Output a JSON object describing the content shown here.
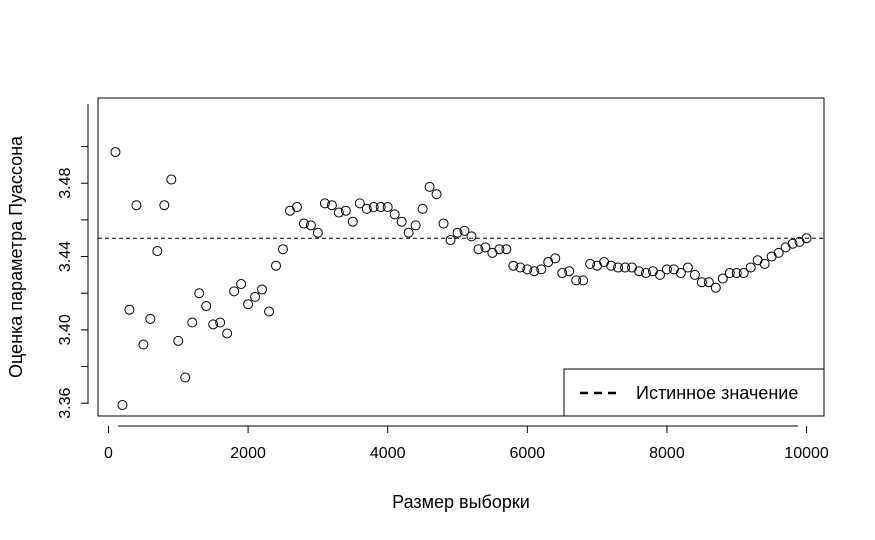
{
  "chart_data": {
    "type": "scatter",
    "xlabel": "Размер выборки",
    "ylabel": "Оценка параметра Пуассона",
    "xlim": [
      -150,
      10250
    ],
    "ylim": [
      3.353,
      3.5265
    ],
    "x_ticks": [
      0,
      2000,
      4000,
      6000,
      8000,
      10000
    ],
    "x_tick_labels": [
      "0",
      "2000",
      "4000",
      "6000",
      "8000",
      "10000"
    ],
    "y_ticks": [
      3.36,
      3.4,
      3.44,
      3.48
    ],
    "y_tick_labels": [
      "3.36",
      "3.40",
      "3.44",
      "3.48"
    ],
    "y_minor_ticks": [
      3.38,
      3.42,
      3.46,
      3.5
    ],
    "reference_line": {
      "y": 3.45,
      "style": "dashed",
      "label": "Истинное значение"
    },
    "legend": {
      "position": "bottom-right",
      "entries": [
        "Истинное значение"
      ]
    },
    "grid": false,
    "x": [
      100,
      200,
      300,
      400,
      500,
      600,
      700,
      800,
      900,
      1000,
      1100,
      1200,
      1300,
      1400,
      1500,
      1600,
      1700,
      1800,
      1900,
      2000,
      2100,
      2200,
      2300,
      2400,
      2500,
      2600,
      2700,
      2800,
      2900,
      3000,
      3100,
      3200,
      3300,
      3400,
      3500,
      3600,
      3700,
      3800,
      3900,
      4000,
      4100,
      4200,
      4300,
      4400,
      4500,
      4600,
      4700,
      4800,
      4900,
      5000,
      5100,
      5200,
      5300,
      5400,
      5500,
      5600,
      5700,
      5800,
      5900,
      6000,
      6100,
      6200,
      6300,
      6400,
      6500,
      6600,
      6700,
      6800,
      6900,
      7000,
      7100,
      7200,
      7300,
      7400,
      7500,
      7600,
      7700,
      7800,
      7900,
      8000,
      8100,
      8200,
      8300,
      8400,
      8500,
      8600,
      8700,
      8800,
      8900,
      9000,
      9100,
      9200,
      9300,
      9400,
      9500,
      9600,
      9700,
      9800,
      9900,
      10000
    ],
    "y": [
      3.497,
      3.359,
      3.411,
      3.468,
      3.392,
      3.406,
      3.443,
      3.468,
      3.482,
      3.394,
      3.374,
      3.404,
      3.42,
      3.413,
      3.403,
      3.404,
      3.398,
      3.421,
      3.425,
      3.414,
      3.418,
      3.422,
      3.41,
      3.435,
      3.444,
      3.465,
      3.467,
      3.458,
      3.457,
      3.453,
      3.469,
      3.468,
      3.464,
      3.465,
      3.459,
      3.469,
      3.466,
      3.467,
      3.467,
      3.467,
      3.463,
      3.459,
      3.453,
      3.457,
      3.466,
      3.478,
      3.474,
      3.458,
      3.449,
      3.453,
      3.454,
      3.451,
      3.444,
      3.445,
      3.442,
      3.444,
      3.444,
      3.435,
      3.434,
      3.433,
      3.432,
      3.433,
      3.437,
      3.439,
      3.431,
      3.432,
      3.427,
      3.427,
      3.436,
      3.435,
      3.437,
      3.435,
      3.434,
      3.434,
      3.434,
      3.432,
      3.431,
      3.432,
      3.43,
      3.433,
      3.433,
      3.431,
      3.434,
      3.43,
      3.426,
      3.426,
      3.423,
      3.428,
      3.431,
      3.431,
      3.431,
      3.434,
      3.438,
      3.436,
      3.44,
      3.442,
      3.445,
      3.447,
      3.448,
      3.45
    ]
  }
}
